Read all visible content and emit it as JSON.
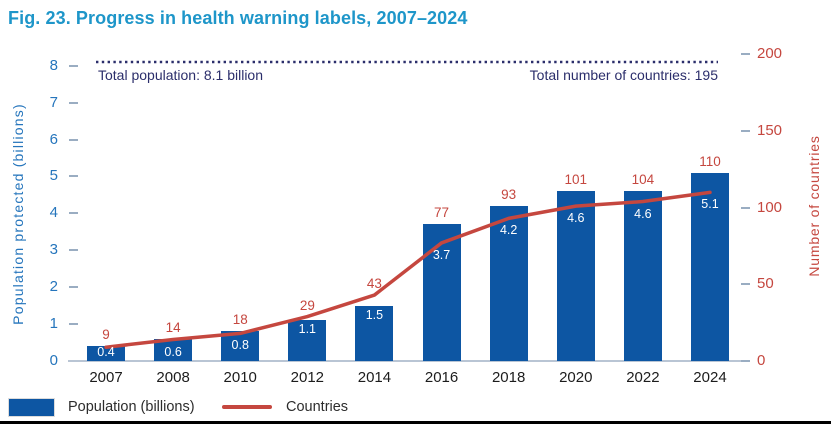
{
  "title": "Fig. 23. Progress in health warning labels, 2007–2024",
  "colors": {
    "title": "#1e96c9",
    "bar": "#0d56a3",
    "line": "#c5473f",
    "navy": "#2b2e6b",
    "left_axis_text": "#2575bc",
    "tick_dash": "#9aadc2",
    "baseline": "#b9c5d4",
    "bottom_rule": "#000000"
  },
  "chart_data": {
    "type": "bar+line",
    "title": "Fig. 23. Progress in health warning labels, 2007–2024",
    "categories": [
      "2007",
      "2008",
      "2010",
      "2012",
      "2014",
      "2016",
      "2018",
      "2020",
      "2022",
      "2024"
    ],
    "series": [
      {
        "name": "Population (billions)",
        "type": "bar",
        "axis": "left",
        "color": "#0d56a3",
        "values": [
          0.4,
          0.6,
          0.8,
          1.1,
          1.5,
          3.7,
          4.2,
          4.6,
          4.6,
          5.1
        ]
      },
      {
        "name": "Countries",
        "type": "line",
        "axis": "right",
        "color": "#c5473f",
        "values": [
          9,
          14,
          18,
          29,
          43,
          77,
          93,
          101,
          104,
          110
        ]
      }
    ],
    "left_axis": {
      "label": "Population protected (billions)",
      "ticks": [
        0,
        1,
        2,
        3,
        4,
        5,
        6,
        7,
        8
      ],
      "range": [
        0,
        8.6
      ]
    },
    "right_axis": {
      "label": "Number of countries",
      "ticks": [
        0,
        50,
        100,
        150,
        200
      ],
      "range": [
        0,
        210
      ]
    },
    "reference": {
      "left_value": 8.1,
      "right_value": 195,
      "label_left": "Total population: 8.1 billion",
      "label_right": "Total number of countries: 195",
      "style": "dotted"
    },
    "legend_position": "bottom-left",
    "grid": false
  }
}
